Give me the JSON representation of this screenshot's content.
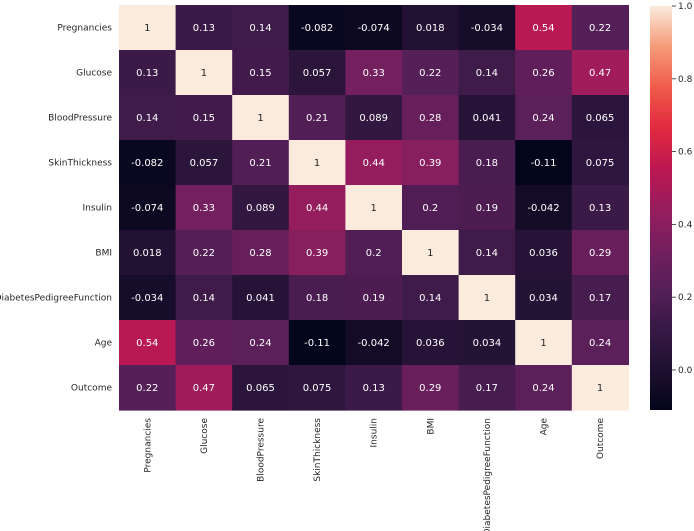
{
  "chart_data": {
    "type": "heatmap",
    "title": "",
    "xlabel": "",
    "ylabel": "",
    "colormap": "rocket",
    "annotated": true,
    "categories": [
      "Pregnancies",
      "Glucose",
      "BloodPressure",
      "SkinThickness",
      "Insulin",
      "BMI",
      "DiabetesPedigreeFunction",
      "Age",
      "Outcome"
    ],
    "values": [
      [
        1,
        0.13,
        0.14,
        -0.082,
        -0.074,
        0.018,
        -0.034,
        0.54,
        0.22
      ],
      [
        0.13,
        1,
        0.15,
        0.057,
        0.33,
        0.22,
        0.14,
        0.26,
        0.47
      ],
      [
        0.14,
        0.15,
        1,
        0.21,
        0.089,
        0.28,
        0.041,
        0.24,
        0.065
      ],
      [
        -0.082,
        0.057,
        0.21,
        1,
        0.44,
        0.39,
        0.18,
        -0.11,
        0.075
      ],
      [
        -0.074,
        0.33,
        0.089,
        0.44,
        1,
        0.2,
        0.19,
        -0.042,
        0.13
      ],
      [
        0.018,
        0.22,
        0.28,
        0.39,
        0.2,
        1,
        0.14,
        0.036,
        0.29
      ],
      [
        -0.034,
        0.14,
        0.041,
        0.18,
        0.19,
        0.14,
        1,
        0.034,
        0.17
      ],
      [
        0.54,
        0.26,
        0.24,
        -0.11,
        -0.042,
        0.036,
        0.034,
        1,
        0.24
      ],
      [
        0.22,
        0.47,
        0.065,
        0.075,
        0.13,
        0.29,
        0.17,
        0.24,
        1
      ]
    ],
    "colorbar": {
      "range": [
        -0.11,
        1.0
      ],
      "ticks": [
        0.0,
        0.2,
        0.4,
        0.6,
        0.8,
        1.0
      ],
      "tick_labels": [
        "0.0",
        "0.2",
        "0.4",
        "0.6",
        "0.8",
        "1.0"
      ]
    }
  }
}
